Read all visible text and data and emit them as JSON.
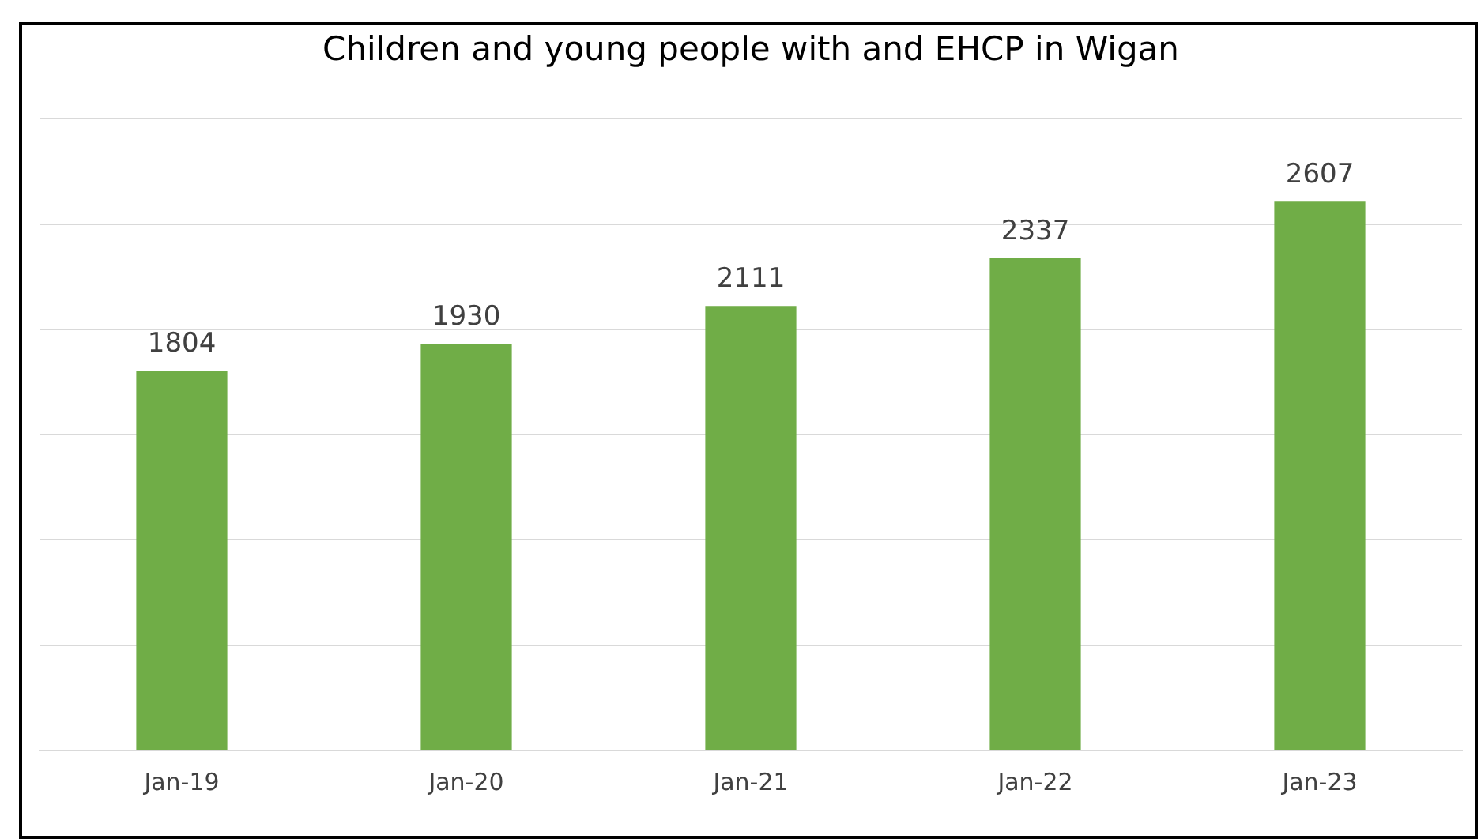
{
  "chart_data": {
    "type": "bar",
    "title": "Children and young people with and EHCP in Wigan",
    "categories": [
      "Jan-19",
      "Jan-20",
      "Jan-21",
      "Jan-22",
      "Jan-23"
    ],
    "values": [
      1804,
      1930,
      2111,
      2337,
      2607
    ],
    "color": "#70ad47",
    "ylim": [
      0,
      3000
    ],
    "yticks": [
      {
        "value": 0,
        "label": null
      },
      {
        "value": 500,
        "label": null
      },
      {
        "value": 1000,
        "label": null
      },
      {
        "value": 1500,
        "label": null
      },
      {
        "value": 2000,
        "label": null
      },
      {
        "value": 2500,
        "label": null
      },
      {
        "value": 3000,
        "label": null
      }
    ],
    "grid": "y",
    "data_labels": true,
    "legend": false
  }
}
